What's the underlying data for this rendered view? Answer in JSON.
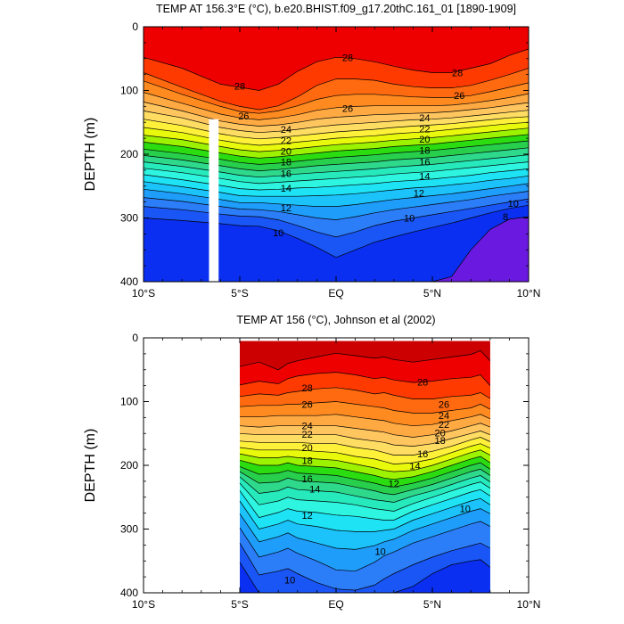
{
  "figure": {
    "background": "#ffffff",
    "palette": {
      "4": "#1b0fb0",
      "6": "#4a0fd8",
      "8": "#6a1ae0",
      "9": "#0a2ff0",
      "10": "#1a55f5",
      "11": "#2c7df8",
      "12": "#1f9dfa",
      "13": "#1cc3fb",
      "14": "#1de3f5",
      "15": "#2df5e0",
      "16": "#26e9bc",
      "17": "#2ed98c",
      "18": "#28cf4c",
      "19": "#2bdc10",
      "20": "#9df200",
      "21": "#e9f90c",
      "22": "#fff13a",
      "23": "#ffdc62",
      "24": "#ffc660",
      "25": "#ffa942",
      "26": "#ff8b20",
      "27": "#ff6a10",
      "28": "#ff3a00",
      "29": "#ee0000",
      "30": "#cc0000"
    }
  },
  "chart_data": [
    {
      "type": "contour",
      "title": "TEMP AT 156.3°E (°C), b.e20.BHIST.f09_g17.20thC.161_01 [1890-1909]",
      "ylabel": "DEPTH (m)",
      "xlim": [
        -10,
        10
      ],
      "ylim": [
        400,
        0
      ],
      "xticks": [
        -10,
        -5,
        0,
        5,
        10
      ],
      "xtick_labels": [
        "10°S",
        "5°S",
        "EQ",
        "5°N",
        "10°N"
      ],
      "yticks": [
        0,
        100,
        200,
        300,
        400
      ],
      "ytick_labels": [
        "0",
        "100",
        "200",
        "300",
        "400"
      ],
      "data_extent_lat": [
        -10,
        10
      ],
      "missing_column": {
        "lat": [
          -6.6,
          -6.1
        ],
        "depth": [
          145,
          400
        ]
      },
      "x_lat": [
        -10,
        -8,
        -6,
        -5,
        -4,
        -3,
        -2,
        -1,
        0,
        1,
        2,
        3,
        4,
        5,
        6,
        7,
        8,
        9,
        10
      ],
      "isotherm_depths": {
        "29": [
          0,
          0,
          0,
          0,
          0,
          0,
          0,
          0,
          0,
          0,
          0,
          0,
          0,
          0,
          0,
          0,
          0,
          0,
          0
        ],
        "28": [
          48,
          65,
          90,
          95,
          100,
          90,
          70,
          55,
          48,
          50,
          55,
          62,
          68,
          72,
          72,
          65,
          58,
          45,
          35
        ],
        "27": [
          72,
          95,
          117,
          125,
          130,
          124,
          110,
          92,
          82,
          82,
          84,
          90,
          94,
          96,
          96,
          92,
          84,
          75,
          65
        ],
        "26": [
          85,
          106,
          125,
          133,
          136,
          132,
          124,
          114,
          108,
          106,
          106,
          108,
          110,
          111,
          111,
          108,
          102,
          95,
          88
        ],
        "25": [
          103,
          120,
          137,
          143,
          146,
          143,
          138,
          131,
          127,
          125,
          124,
          124,
          124,
          124,
          123,
          120,
          116,
          111,
          105
        ],
        "24": [
          118,
          132,
          148,
          153,
          156,
          154,
          150,
          145,
          142,
          140,
          138,
          137,
          136,
          135,
          133,
          130,
          127,
          123,
          119
        ],
        "23": [
          132,
          143,
          158,
          163,
          166,
          164,
          161,
          157,
          154,
          152,
          150,
          148,
          146,
          145,
          143,
          140,
          137,
          134,
          131
        ],
        "22": [
          145,
          155,
          168,
          173,
          176,
          174,
          171,
          168,
          165,
          163,
          161,
          158,
          156,
          154,
          152,
          149,
          146,
          143,
          141
        ],
        "21": [
          158,
          166,
          178,
          183,
          186,
          184,
          181,
          178,
          175,
          173,
          171,
          168,
          166,
          164,
          161,
          158,
          155,
          152,
          150
        ],
        "20": [
          170,
          177,
          188,
          193,
          196,
          194,
          191,
          188,
          185,
          183,
          181,
          178,
          176,
          174,
          171,
          168,
          165,
          162,
          159
        ],
        "19": [
          181,
          188,
          198,
          203,
          206,
          204,
          201,
          198,
          195,
          193,
          191,
          188,
          186,
          184,
          181,
          178,
          175,
          172,
          169
        ],
        "18": [
          192,
          199,
          208,
          213,
          216,
          214,
          211,
          208,
          205,
          203,
          201,
          198,
          196,
          194,
          191,
          188,
          185,
          182,
          179
        ],
        "17": [
          202,
          209,
          218,
          223,
          226,
          224,
          221,
          218,
          216,
          214,
          212,
          209,
          207,
          205,
          202,
          199,
          196,
          193,
          190
        ],
        "16": [
          212,
          219,
          228,
          233,
          236,
          234,
          231,
          229,
          227,
          225,
          223,
          220,
          218,
          216,
          213,
          210,
          207,
          204,
          201
        ],
        "15": [
          222,
          229,
          238,
          243,
          246,
          244,
          242,
          240,
          238,
          236,
          234,
          231,
          229,
          227,
          224,
          221,
          218,
          215,
          212
        ],
        "14": [
          232,
          240,
          249,
          254,
          256,
          255,
          253,
          252,
          250,
          248,
          246,
          243,
          241,
          239,
          236,
          233,
          229,
          226,
          223
        ],
        "13": [
          243,
          251,
          260,
          265,
          266,
          266,
          266,
          265,
          264,
          262,
          259,
          256,
          253,
          251,
          248,
          245,
          241,
          238,
          234
        ],
        "12": [
          255,
          262,
          271,
          276,
          276,
          278,
          280,
          282,
          282,
          279,
          275,
          271,
          268,
          265,
          262,
          258,
          254,
          250,
          246
        ],
        "11": [
          268,
          274,
          282,
          286,
          287,
          290,
          295,
          300,
          303,
          298,
          292,
          287,
          283,
          279,
          275,
          271,
          266,
          262,
          258
        ],
        "10": [
          282,
          287,
          294,
          297,
          298,
          303,
          312,
          322,
          330,
          322,
          312,
          305,
          300,
          295,
          290,
          285,
          280,
          275,
          270
        ],
        "9": [
          300,
          304,
          309,
          312,
          313,
          320,
          332,
          346,
          362,
          350,
          338,
          330,
          322,
          315,
          308,
          300,
          292,
          285,
          280
        ],
        "8": [
          400,
          400,
          400,
          400,
          400,
          400,
          400,
          400,
          400,
          400,
          400,
          400,
          400,
          400,
          392,
          350,
          318,
          302,
          298
        ]
      },
      "contour_labels": [
        {
          "value": "28",
          "lat": 0.6,
          "depth": 48
        },
        {
          "value": "28",
          "lat": 6.3,
          "depth": 72
        },
        {
          "value": "28",
          "lat": -5.0,
          "depth": 93
        },
        {
          "value": "26",
          "lat": 6.4,
          "depth": 108
        },
        {
          "value": "26",
          "lat": 0.6,
          "depth": 128
        },
        {
          "value": "26",
          "lat": -4.8,
          "depth": 140
        },
        {
          "value": "24",
          "lat": -2.6,
          "depth": 161
        },
        {
          "value": "24",
          "lat": 4.6,
          "depth": 143
        },
        {
          "value": "22",
          "lat": -2.6,
          "depth": 178
        },
        {
          "value": "22",
          "lat": 4.6,
          "depth": 160
        },
        {
          "value": "20",
          "lat": -2.6,
          "depth": 195
        },
        {
          "value": "20",
          "lat": 4.6,
          "depth": 176
        },
        {
          "value": "18",
          "lat": -2.6,
          "depth": 212
        },
        {
          "value": "18",
          "lat": 4.6,
          "depth": 194
        },
        {
          "value": "16",
          "lat": -2.6,
          "depth": 230
        },
        {
          "value": "16",
          "lat": 4.6,
          "depth": 212
        },
        {
          "value": "14",
          "lat": -2.6,
          "depth": 253
        },
        {
          "value": "14",
          "lat": 4.6,
          "depth": 234
        },
        {
          "value": "12",
          "lat": -2.6,
          "depth": 284
        },
        {
          "value": "12",
          "lat": 4.3,
          "depth": 261
        },
        {
          "value": "10",
          "lat": -3.0,
          "depth": 323
        },
        {
          "value": "10",
          "lat": 3.8,
          "depth": 300
        },
        {
          "value": "10",
          "lat": 9.2,
          "depth": 277
        },
        {
          "value": "8",
          "lat": 8.8,
          "depth": 298
        }
      ]
    },
    {
      "type": "contour",
      "title": "TEMP AT 156 (°C), Johnson et al (2002)",
      "ylabel": "DEPTH (m)",
      "xlim": [
        -10,
        10
      ],
      "ylim": [
        400,
        0
      ],
      "xticks": [
        -10,
        -5,
        0,
        5,
        10
      ],
      "xtick_labels": [
        "10°S",
        "5°S",
        "EQ",
        "5°N",
        "10°N"
      ],
      "yticks": [
        0,
        100,
        200,
        300,
        400
      ],
      "ytick_labels": [
        "0",
        "100",
        "200",
        "300",
        "400"
      ],
      "data_extent_lat": [
        -5,
        8
      ],
      "data_extent_depth": [
        5,
        400
      ],
      "x_lat": [
        -5,
        -4,
        -3,
        -2.5,
        -2,
        -1,
        0,
        1,
        2,
        2.5,
        3,
        4,
        5,
        6,
        7,
        7.5,
        8
      ],
      "isotherm_depths": {
        "30": [
          5,
          5,
          5,
          5,
          5,
          5,
          5,
          5,
          5,
          5,
          5,
          5,
          5,
          5,
          5,
          5,
          5
        ],
        "29": [
          45,
          38,
          50,
          40,
          36,
          30,
          24,
          28,
          32,
          30,
          34,
          38,
          34,
          30,
          26,
          20,
          36
        ],
        "28": [
          74,
          68,
          72,
          64,
          60,
          56,
          54,
          58,
          64,
          62,
          66,
          70,
          68,
          64,
          62,
          58,
          75
        ],
        "27": [
          92,
          88,
          90,
          86,
          84,
          80,
          78,
          82,
          88,
          86,
          90,
          96,
          96,
          92,
          90,
          86,
          95
        ],
        "26": [
          108,
          106,
          106,
          104,
          104,
          102,
          100,
          104,
          108,
          110,
          114,
          118,
          118,
          114,
          110,
          104,
          112
        ],
        "25": [
          124,
          124,
          122,
          122,
          122,
          122,
          120,
          124,
          128,
          130,
          134,
          138,
          136,
          130,
          124,
          120,
          127
        ],
        "24": [
          138,
          140,
          138,
          138,
          138,
          138,
          138,
          142,
          146,
          148,
          152,
          156,
          152,
          146,
          138,
          134,
          140
        ],
        "23": [
          150,
          152,
          152,
          152,
          152,
          152,
          152,
          158,
          162,
          164,
          168,
          170,
          166,
          158,
          150,
          146,
          152
        ],
        "22": [
          162,
          164,
          164,
          164,
          164,
          166,
          166,
          172,
          176,
          180,
          184,
          184,
          178,
          170,
          160,
          156,
          163
        ],
        "21": [
          172,
          176,
          176,
          176,
          176,
          178,
          180,
          186,
          190,
          194,
          198,
          196,
          190,
          180,
          170,
          166,
          173
        ],
        "20": [
          182,
          188,
          188,
          186,
          188,
          190,
          192,
          198,
          204,
          208,
          210,
          208,
          200,
          190,
          180,
          176,
          184
        ],
        "19": [
          192,
          200,
          200,
          196,
          200,
          202,
          204,
          210,
          216,
          220,
          222,
          218,
          210,
          200,
          190,
          186,
          196
        ],
        "18": [
          202,
          214,
          212,
          208,
          212,
          214,
          216,
          222,
          228,
          232,
          234,
          228,
          220,
          210,
          200,
          196,
          206
        ],
        "17": [
          210,
          228,
          226,
          220,
          224,
          226,
          228,
          234,
          240,
          244,
          246,
          238,
          230,
          220,
          210,
          206,
          216
        ],
        "16": [
          218,
          244,
          240,
          234,
          238,
          240,
          242,
          248,
          254,
          256,
          258,
          248,
          240,
          230,
          220,
          216,
          226
        ],
        "15": [
          228,
          262,
          256,
          250,
          254,
          256,
          258,
          262,
          268,
          270,
          272,
          260,
          250,
          240,
          230,
          226,
          236
        ],
        "14": [
          240,
          282,
          274,
          268,
          272,
          274,
          278,
          280,
          284,
          286,
          286,
          272,
          262,
          252,
          242,
          238,
          248
        ],
        "13": [
          256,
          300,
          292,
          286,
          292,
          296,
          302,
          304,
          304,
          302,
          300,
          286,
          276,
          266,
          256,
          252,
          262
        ],
        "12": [
          276,
          320,
          312,
          306,
          314,
          322,
          330,
          332,
          326,
          320,
          316,
          302,
          292,
          282,
          272,
          268,
          276
        ],
        "11": [
          298,
          344,
          336,
          330,
          338,
          350,
          364,
          366,
          352,
          342,
          336,
          322,
          312,
          302,
          292,
          288,
          296
        ],
        "10": [
          322,
          372,
          366,
          362,
          370,
          384,
          394,
          396,
          388,
          378,
          370,
          356,
          344,
          334,
          326,
          322,
          330
        ],
        "9": [
          352,
          400,
          400,
          400,
          400,
          400,
          400,
          400,
          400,
          400,
          400,
          390,
          370,
          356,
          350,
          348,
          360
        ]
      },
      "contour_labels": [
        {
          "value": "28",
          "lat": -1.5,
          "depth": 78
        },
        {
          "value": "28",
          "lat": 4.5,
          "depth": 69
        },
        {
          "value": "26",
          "lat": -1.5,
          "depth": 104
        },
        {
          "value": "26",
          "lat": 5.6,
          "depth": 104
        },
        {
          "value": "24",
          "lat": -1.5,
          "depth": 138
        },
        {
          "value": "24",
          "lat": 5.6,
          "depth": 122
        },
        {
          "value": "22",
          "lat": -1.5,
          "depth": 151
        },
        {
          "value": "22",
          "lat": 5.6,
          "depth": 136
        },
        {
          "value": "20",
          "lat": -1.5,
          "depth": 172
        },
        {
          "value": "20",
          "lat": 5.4,
          "depth": 149
        },
        {
          "value": "18",
          "lat": -1.5,
          "depth": 192
        },
        {
          "value": "18",
          "lat": 5.4,
          "depth": 161
        },
        {
          "value": "16",
          "lat": 4.5,
          "depth": 182
        },
        {
          "value": "16",
          "lat": -1.5,
          "depth": 221
        },
        {
          "value": "14",
          "lat": 4.1,
          "depth": 201
        },
        {
          "value": "14",
          "lat": -1.1,
          "depth": 237
        },
        {
          "value": "12",
          "lat": 3.0,
          "depth": 229
        },
        {
          "value": "12",
          "lat": -1.5,
          "depth": 278
        },
        {
          "value": "10",
          "lat": 6.7,
          "depth": 268
        },
        {
          "value": "10",
          "lat": 2.3,
          "depth": 335
        },
        {
          "value": "10",
          "lat": -2.4,
          "depth": 380
        }
      ]
    }
  ]
}
